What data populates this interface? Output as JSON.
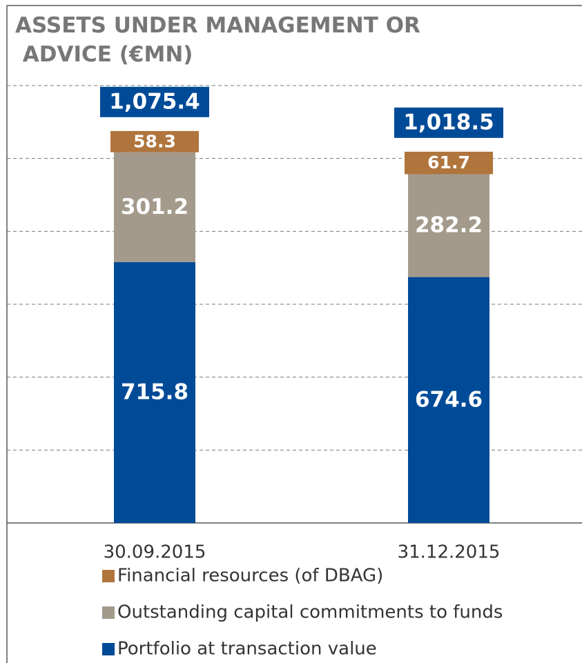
{
  "chart_data": {
    "type": "stacked-bar",
    "title": "ASSETS UNDER MANAGEMENT OR ADVICE (€MN)",
    "categories": [
      "30.09.2015",
      "31.12.2015"
    ],
    "series": [
      {
        "name": "Financial resources (of DBAG)",
        "color": "#b0753c",
        "values": [
          58.3,
          61.7
        ]
      },
      {
        "name": "Outstanding capital commitments to funds",
        "color": "#a39a8c",
        "values": [
          301.2,
          282.2
        ]
      },
      {
        "name": "Portfolio at transaction value",
        "color": "#004b97",
        "values": [
          715.8,
          674.6
        ]
      }
    ],
    "totals": [
      1075.4,
      1018.5
    ],
    "total_labels": [
      "1,075.4",
      "1,018.5"
    ],
    "ylim": [
      0,
      1200
    ],
    "yticks": [
      0,
      200,
      400,
      600,
      800,
      1000,
      1200
    ],
    "grid": true
  }
}
